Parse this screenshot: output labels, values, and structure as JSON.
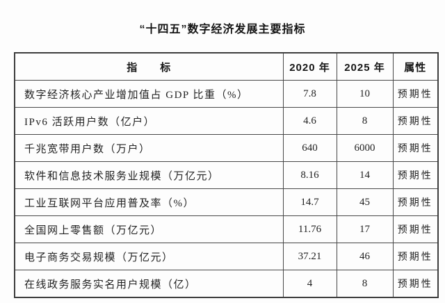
{
  "title": "“十四五”数字经济发展主要指标",
  "table": {
    "headers": {
      "indicator": "指　　标",
      "y2020": "2020 年",
      "y2025": "2025 年",
      "attr": "属性"
    },
    "rows": [
      {
        "indicator": "数字经济核心产业增加值占 GDP 比重（%）",
        "y2020": "7.8",
        "y2025": "10",
        "attr": "预期性"
      },
      {
        "indicator": "IPv6 活跃用户数（亿户）",
        "y2020": "4.6",
        "y2025": "8",
        "attr": "预期性"
      },
      {
        "indicator": "千兆宽带用户数（万户）",
        "y2020": "640",
        "y2025": "6000",
        "attr": "预期性"
      },
      {
        "indicator": "软件和信息技术服务业规模（万亿元）",
        "y2020": "8.16",
        "y2025": "14",
        "attr": "预期性"
      },
      {
        "indicator": "工业互联网平台应用普及率（%）",
        "y2020": "14.7",
        "y2025": "45",
        "attr": "预期性"
      },
      {
        "indicator": "全国网上零售额（万亿元）",
        "y2020": "11.76",
        "y2025": "17",
        "attr": "预期性"
      },
      {
        "indicator": "电子商务交易规模（万亿元）",
        "y2020": "37.21",
        "y2025": "46",
        "attr": "预期性"
      },
      {
        "indicator": "在线政务服务实名用户规模（亿）",
        "y2020": "4",
        "y2025": "8",
        "attr": "预期性"
      }
    ]
  },
  "colors": {
    "background": "#fdfdfd",
    "border": "#474747",
    "text": "#222222"
  }
}
